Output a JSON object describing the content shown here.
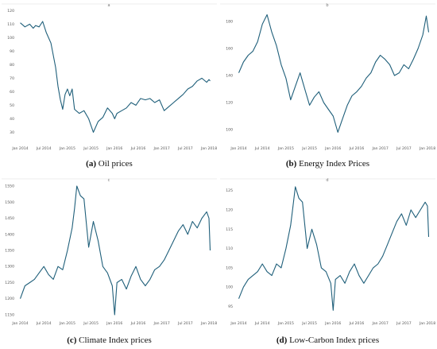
{
  "chart_data": [
    {
      "type": "line",
      "panel_letter": "a",
      "caption_label": "(a)",
      "caption_text": "Oil prices",
      "line_color": "#1f5f7a",
      "ylim": [
        22,
        122
      ],
      "yticks": [
        30,
        40,
        50,
        60,
        70,
        80,
        90,
        100,
        110,
        120
      ],
      "xticks": [
        "Jan 2014",
        "Jul 2014",
        "Jan 2015",
        "Jul 2015",
        "Jan 2016",
        "Jul 2016",
        "Jan 2017",
        "Jul 2017",
        "Jan 2018"
      ],
      "x": [
        0,
        0.2,
        0.4,
        0.55,
        0.65,
        0.8,
        0.95,
        1.1,
        1.3,
        1.5,
        1.6,
        1.7,
        1.8,
        1.9,
        2.0,
        2.1,
        2.2,
        2.3,
        2.5,
        2.7,
        2.9,
        3.1,
        3.3,
        3.5,
        3.7,
        3.9,
        4.0,
        4.1,
        4.3,
        4.5,
        4.7,
        4.9,
        5.1,
        5.3,
        5.5,
        5.7,
        5.9,
        6.1,
        6.3,
        6.5,
        6.7,
        6.9,
        7.1,
        7.3,
        7.5,
        7.7,
        7.9,
        8.0,
        8.05
      ],
      "y": [
        111,
        108,
        110,
        107,
        109,
        108,
        112,
        104,
        96,
        78,
        64,
        54,
        47,
        58,
        62,
        57,
        62,
        47,
        44,
        46,
        40,
        30,
        38,
        41,
        48,
        44,
        40,
        44,
        46,
        48,
        52,
        50,
        55,
        54,
        55,
        52,
        54,
        46,
        49,
        52,
        55,
        58,
        62,
        64,
        68,
        70,
        67,
        69,
        68
      ]
    },
    {
      "type": "line",
      "panel_letter": "b",
      "caption_label": "(b)",
      "caption_text": "Energy Index Prices",
      "line_color": "#1f5f7a",
      "ylim": [
        90,
        190
      ],
      "yticks": [
        100,
        120,
        140,
        160,
        180
      ],
      "xticks": [
        "Jan 2014",
        "Jul 2014",
        "Jan 2015",
        "Jul 2015",
        "Jan 2016",
        "Jul 2016",
        "Jan 2017",
        "Jul 2017",
        "Jan 2018"
      ],
      "x": [
        0,
        0.2,
        0.4,
        0.6,
        0.8,
        1.0,
        1.2,
        1.4,
        1.6,
        1.8,
        2.0,
        2.2,
        2.4,
        2.6,
        2.8,
        3.0,
        3.2,
        3.4,
        3.6,
        3.8,
        4.0,
        4.2,
        4.4,
        4.6,
        4.8,
        5.0,
        5.2,
        5.4,
        5.6,
        5.8,
        6.0,
        6.2,
        6.4,
        6.6,
        6.8,
        7.0,
        7.2,
        7.4,
        7.6,
        7.8,
        7.95,
        8.05
      ],
      "y": [
        142,
        150,
        155,
        158,
        165,
        178,
        185,
        172,
        162,
        148,
        138,
        122,
        132,
        142,
        130,
        118,
        124,
        128,
        120,
        115,
        110,
        98,
        108,
        118,
        125,
        128,
        132,
        138,
        142,
        150,
        155,
        152,
        148,
        140,
        142,
        148,
        145,
        152,
        160,
        170,
        184,
        172
      ]
    },
    {
      "type": "line",
      "panel_letter": "c",
      "caption_label": "(c)",
      "caption_text": "Climate Index prices",
      "line_color": "#1f5f7a",
      "ylim": [
        1140,
        1560
      ],
      "yticks": [
        1150,
        1200,
        1250,
        1300,
        1350,
        1400,
        1450,
        1500,
        1550
      ],
      "xticks": [
        "Jan 2014",
        "Jul 2014",
        "Jan 2015",
        "Jul 2015",
        "Jan 2016",
        "Jul 2016",
        "Jan 2017",
        "Jul 2017",
        "Jan 2018"
      ],
      "x": [
        0,
        0.2,
        0.4,
        0.6,
        0.8,
        1.0,
        1.2,
        1.4,
        1.6,
        1.8,
        2.0,
        2.2,
        2.3,
        2.4,
        2.55,
        2.7,
        2.9,
        3.1,
        3.3,
        3.5,
        3.7,
        3.9,
        4.0,
        4.1,
        4.3,
        4.5,
        4.7,
        4.9,
        5.1,
        5.3,
        5.5,
        5.7,
        5.9,
        6.1,
        6.3,
        6.5,
        6.7,
        6.9,
        7.1,
        7.3,
        7.5,
        7.7,
        7.9,
        8.0,
        8.05
      ],
      "y": [
        1200,
        1240,
        1250,
        1260,
        1280,
        1300,
        1275,
        1260,
        1300,
        1290,
        1350,
        1420,
        1480,
        1550,
        1520,
        1510,
        1360,
        1440,
        1380,
        1300,
        1280,
        1240,
        1150,
        1250,
        1260,
        1230,
        1270,
        1300,
        1260,
        1240,
        1260,
        1290,
        1300,
        1320,
        1350,
        1380,
        1410,
        1430,
        1400,
        1440,
        1420,
        1450,
        1470,
        1450,
        1350
      ]
    },
    {
      "type": "line",
      "panel_letter": "d",
      "caption_label": "(d)",
      "caption_text": "Low-Carbon Index prices",
      "line_color": "#1f5f7a",
      "ylim": [
        92,
        127
      ],
      "yticks": [
        95,
        100,
        105,
        110,
        115,
        120,
        125
      ],
      "xticks": [
        "Jan 2014",
        "Jul 2014",
        "Jan 2015",
        "Jul 2015",
        "Jan 2016",
        "Jul 2016",
        "Jan 2017",
        "Jul 2017",
        "Jan 2018"
      ],
      "x": [
        0,
        0.2,
        0.4,
        0.6,
        0.8,
        1.0,
        1.2,
        1.4,
        1.6,
        1.8,
        2.0,
        2.2,
        2.3,
        2.4,
        2.55,
        2.7,
        2.9,
        3.1,
        3.3,
        3.5,
        3.7,
        3.9,
        4.0,
        4.1,
        4.3,
        4.5,
        4.7,
        4.9,
        5.1,
        5.3,
        5.5,
        5.7,
        5.9,
        6.1,
        6.3,
        6.5,
        6.7,
        6.9,
        7.1,
        7.3,
        7.5,
        7.7,
        7.9,
        8.0,
        8.05
      ],
      "y": [
        97,
        100,
        102,
        103,
        104,
        106,
        104,
        103,
        106,
        105,
        110,
        116,
        121,
        126,
        123,
        122,
        110,
        115,
        111,
        105,
        104,
        101,
        94,
        102,
        103,
        101,
        104,
        106,
        103,
        101,
        103,
        105,
        106,
        108,
        111,
        114,
        117,
        119,
        116,
        120,
        118,
        120,
        122,
        121,
        113
      ]
    }
  ]
}
